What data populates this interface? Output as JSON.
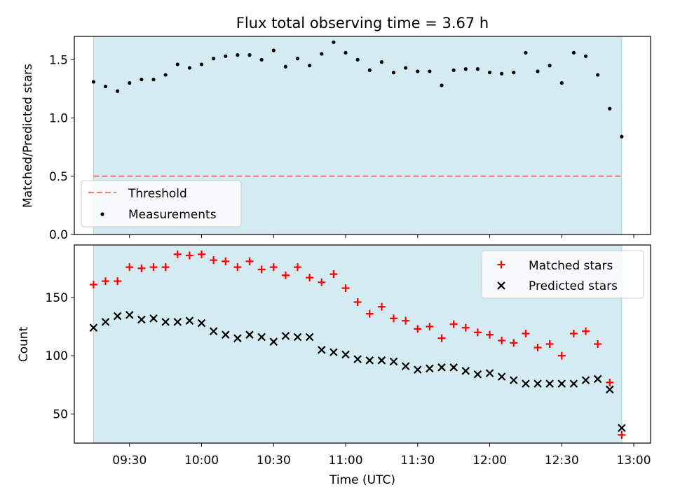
{
  "chart_data": {
    "title": "Flux total observing time = 3.67 h",
    "xlabel": "Time (UTC)",
    "xlim": [
      "09:07",
      "13:07"
    ],
    "shaded_span": [
      "09:15",
      "12:55"
    ],
    "shade_color": "#d4ebf1",
    "x_tick_labels": [
      "09:30",
      "10:00",
      "10:30",
      "11:00",
      "11:30",
      "12:00",
      "12:30",
      "13:00"
    ],
    "x_ticks": [
      "09:30",
      "10:00",
      "10:30",
      "11:00",
      "11:30",
      "12:00",
      "12:30",
      "13:00"
    ],
    "times": [
      "09:15",
      "09:20",
      "09:25",
      "09:30",
      "09:35",
      "09:40",
      "09:45",
      "09:50",
      "09:55",
      "10:00",
      "10:05",
      "10:10",
      "10:15",
      "10:20",
      "10:25",
      "10:30",
      "10:35",
      "10:40",
      "10:45",
      "10:50",
      "10:55",
      "11:00",
      "11:05",
      "11:10",
      "11:15",
      "11:20",
      "11:25",
      "11:30",
      "11:35",
      "11:40",
      "11:45",
      "11:50",
      "11:55",
      "12:00",
      "12:05",
      "12:10",
      "12:15",
      "12:20",
      "12:25",
      "12:30",
      "12:35",
      "12:40",
      "12:45",
      "12:50",
      "12:55"
    ],
    "top": {
      "type": "scatter",
      "ylabel": "Matched/Predicted stars",
      "ylim": [
        0,
        1.7
      ],
      "y_ticks": [
        0.0,
        0.5,
        1.0,
        1.5
      ],
      "y_tick_labels": [
        "0.0",
        "0.5",
        "1.0",
        "1.5"
      ],
      "threshold": {
        "name": "Threshold",
        "value": 0.5,
        "color": "#f08080"
      },
      "measurements": {
        "name": "Measurements",
        "color": "#000000",
        "values": [
          1.31,
          1.27,
          1.23,
          1.3,
          1.33,
          1.33,
          1.37,
          1.46,
          1.43,
          1.46,
          1.51,
          1.53,
          1.54,
          1.54,
          1.5,
          1.58,
          1.44,
          1.51,
          1.45,
          1.55,
          1.65,
          1.56,
          1.5,
          1.41,
          1.48,
          1.39,
          1.43,
          1.4,
          1.4,
          1.28,
          1.41,
          1.42,
          1.42,
          1.39,
          1.38,
          1.39,
          1.56,
          1.4,
          1.45,
          1.3,
          1.56,
          1.53,
          1.37,
          1.08,
          0.84
        ]
      },
      "legend_position": "lower-left"
    },
    "bottom": {
      "type": "scatter",
      "ylabel": "Count",
      "ylim": [
        25,
        195
      ],
      "y_ticks": [
        50,
        100,
        150
      ],
      "y_tick_labels": [
        "50",
        "100",
        "150"
      ],
      "legend_position": "upper-right",
      "series": [
        {
          "name": "Matched stars",
          "marker": "plus",
          "color": "#ff0000",
          "values": [
            161,
            164,
            164,
            176,
            175,
            176,
            176,
            187,
            186,
            187,
            182,
            181,
            176,
            181,
            174,
            176,
            169,
            176,
            167,
            163,
            170,
            158,
            146,
            136,
            142,
            132,
            130,
            123,
            125,
            115,
            127,
            124,
            120,
            118,
            113,
            111,
            119,
            107,
            110,
            100,
            119,
            121,
            110,
            77,
            32
          ]
        },
        {
          "name": "Predicted stars",
          "marker": "x",
          "color": "#000000",
          "values": [
            124,
            129,
            134,
            135,
            131,
            132,
            129,
            129,
            130,
            128,
            121,
            118,
            115,
            118,
            116,
            112,
            117,
            116,
            116,
            105,
            103,
            101,
            97,
            96,
            96,
            95,
            91,
            88,
            89,
            90,
            90,
            87,
            84,
            85,
            82,
            79,
            76,
            76,
            76,
            76,
            76,
            79,
            80,
            71,
            38
          ]
        }
      ]
    }
  }
}
